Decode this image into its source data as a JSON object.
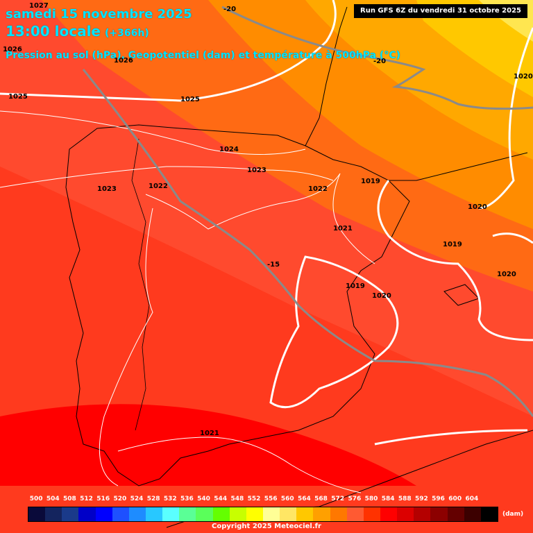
{
  "title": {
    "date": "samedi 15 novembre 2025",
    "local": "13:00 locale",
    "offset": "(+366h)",
    "subtitle": "Pression au sol (hPa), Geopotentiel (dam) et température à 500hPa (°C)"
  },
  "run": "Run GFS 6Z du vendredi 31 octobre 2025",
  "pressure_labels": [
    "1027",
    "1026",
    "1026",
    "1025",
    "1025",
    "1024",
    "1023",
    "1023",
    "1022",
    "1022",
    "1019",
    "1021",
    "1020",
    "1019",
    "1019",
    "1020",
    "1020",
    "1020",
    "1021"
  ],
  "temperature_labels": [
    "-20",
    "-20",
    "-15"
  ],
  "legend": {
    "ticks": [
      "500",
      "504",
      "508",
      "512",
      "516",
      "520",
      "524",
      "528",
      "532",
      "536",
      "540",
      "544",
      "548",
      "552",
      "556",
      "560",
      "564",
      "568",
      "572",
      "576",
      "580",
      "584",
      "588",
      "592",
      "596",
      "600",
      "604"
    ],
    "colors": [
      "#0a0a3a",
      "#14245e",
      "#1a3a8a",
      "#0000c8",
      "#0000ff",
      "#1e50ff",
      "#1e8cff",
      "#28c8ff",
      "#5affff",
      "#5aff96",
      "#5aff5a",
      "#64ff00",
      "#c8ff00",
      "#ffff00",
      "#ffff96",
      "#ffe664",
      "#ffc800",
      "#ffa000",
      "#ff7800",
      "#ff5a32",
      "#ff3200",
      "#ff0000",
      "#dc0000",
      "#b40000",
      "#8c0000",
      "#640000",
      "#3c0000",
      "#000000"
    ],
    "unit": "(dam)"
  },
  "copyright": "Copyright 2025 Meteociel.fr"
}
